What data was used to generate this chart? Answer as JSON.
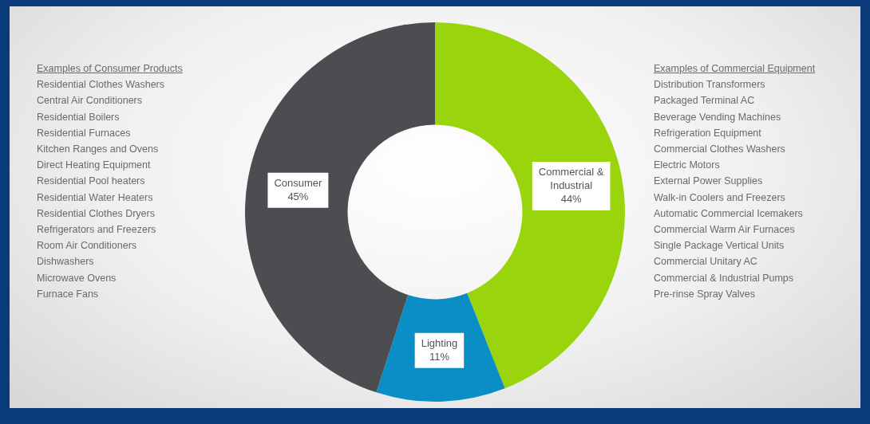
{
  "chart_data": {
    "type": "donut",
    "categories": [
      "Commercial & Industrial",
      "Lighting",
      "Consumer"
    ],
    "values": [
      44,
      11,
      45
    ],
    "value_labels": [
      "44%",
      "11%",
      "45%"
    ],
    "colors": [
      "#99d40d",
      "#0b8ec6",
      "#4b4d51"
    ],
    "legend": false,
    "annotations": [
      "Examples of Consumer Products",
      "Residential Clothes Washers",
      "Central Air Conditioners",
      "Residential Boilers",
      "Residential Furnaces",
      "Kitchen Ranges and Ovens",
      "Direct Heating Equipment",
      "Residential Pool heaters",
      "Residential Water Heaters",
      "Residential Clothes Dryers",
      "Refrigerators and Freezers",
      "Room Air Conditioners",
      "Dishwashers",
      "Microwave Ovens",
      "Furnace Fans",
      "Examples of Commercial Equipment",
      "Distribution Transformers",
      "Packaged Terminal AC",
      "Beverage Vending Machines",
      "Refrigeration Equipment",
      "Commercial Clothes Washers",
      "Electric Motors",
      "External Power Supplies",
      "Walk-in Coolers and Freezers",
      "Automatic Commercial Icemakers",
      "Commercial Warm Air Furnaces",
      "Single Package Vertical Units",
      "Commercial Unitary AC",
      "Commercial & Industrial Pumps",
      "Pre-rinse Spray Valves"
    ]
  }
}
